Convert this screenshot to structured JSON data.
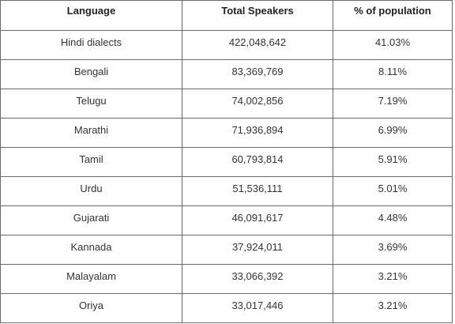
{
  "table": {
    "header": [
      "Language",
      "Total Speakers",
      "% of population"
    ],
    "rows": [
      [
        "Hindi dialects",
        "422,048,642",
        "41.03%"
      ],
      [
        "Bengali",
        "83,369,769",
        "8.11%"
      ],
      [
        "Telugu",
        "74,002,856",
        "7.19%"
      ],
      [
        "Marathi",
        "71,936,894",
        "6.99%"
      ],
      [
        "Tamil",
        "60,793,814",
        "5.91%"
      ],
      [
        "Urdu",
        "51,536,111",
        "5.01%"
      ],
      [
        "Gujarati",
        "46,091,617",
        "4.48%"
      ],
      [
        "Kannada",
        "37,924,011",
        "3.69%"
      ],
      [
        "Malayalam",
        "33,066,392",
        "3.21%"
      ],
      [
        "Oriya",
        "33,017,446",
        "3.21%"
      ]
    ]
  }
}
